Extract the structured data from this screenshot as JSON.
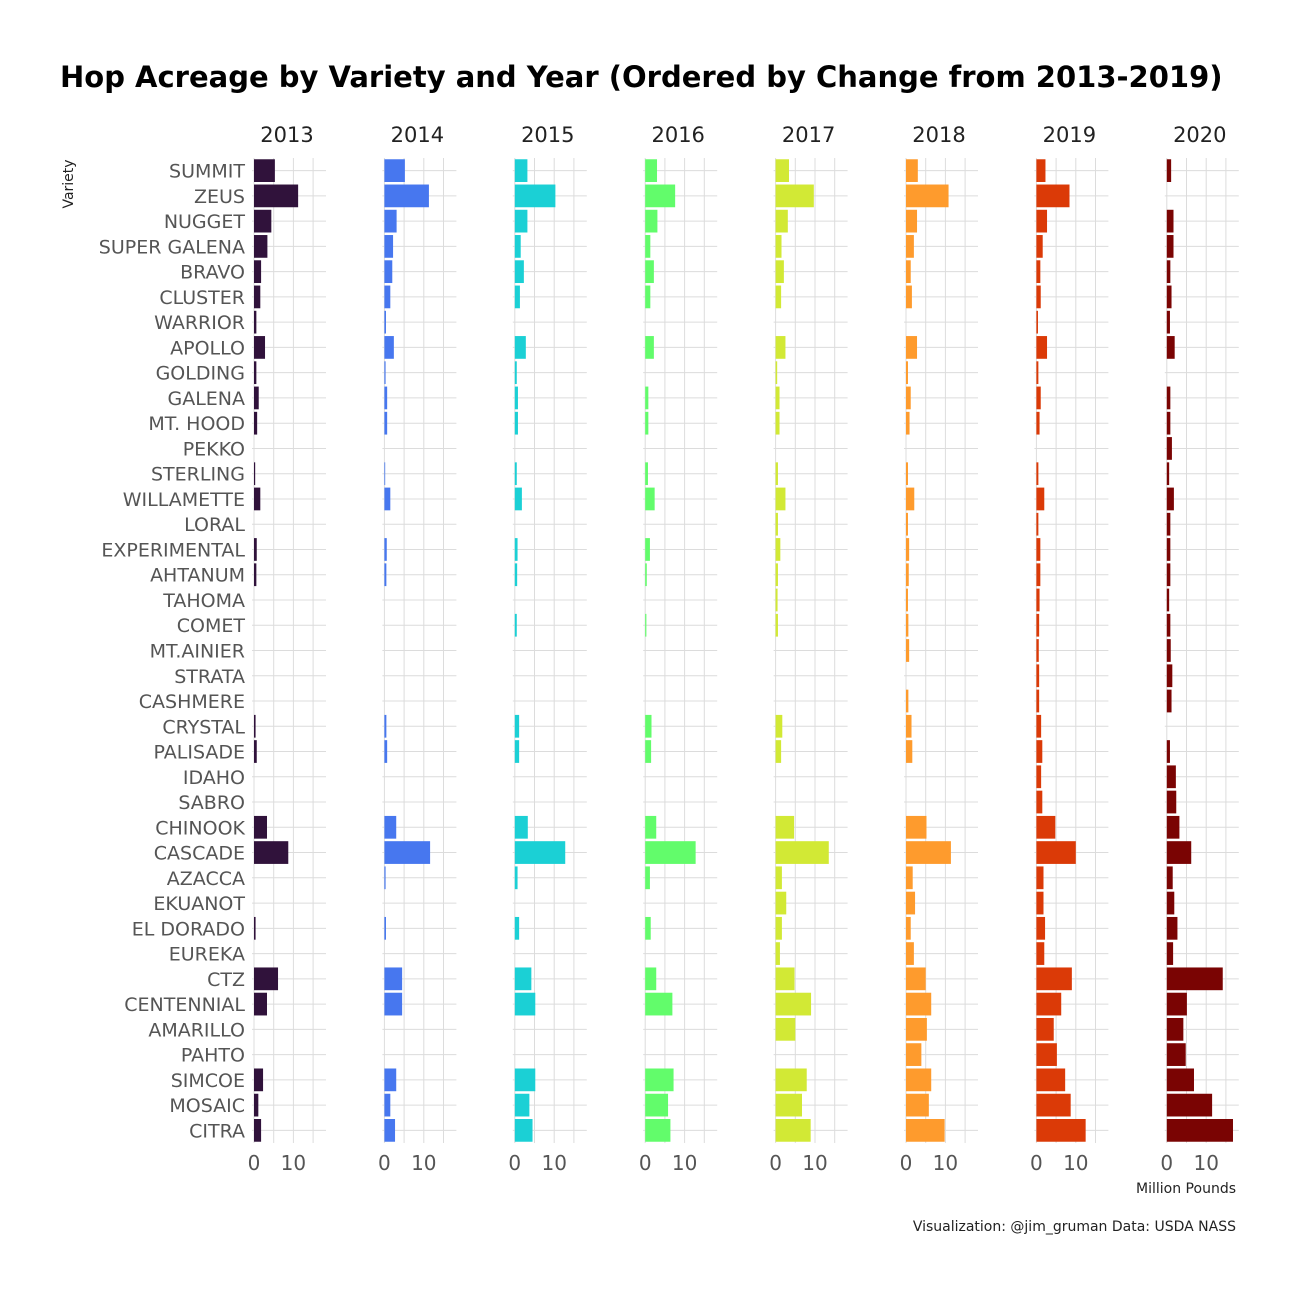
{
  "chart_data": {
    "type": "bar",
    "title": "Hop Acreage by Variety and Year (Ordered by Change from 2013-2019)",
    "ylabel": "Variety",
    "xlabel": "Million Pounds",
    "caption": "Visualization: @jim_gruman Data: USDA NASS",
    "orientation": "horizontal",
    "xlim": [
      0,
      18
    ],
    "xticks": [
      0,
      10
    ],
    "xtick_labels": [
      "0",
      "10"
    ],
    "grid": true,
    "categories": [
      "SUMMIT",
      "ZEUS",
      "NUGGET",
      "SUPER GALENA",
      "BRAVO",
      "CLUSTER",
      "WARRIOR",
      "APOLLO",
      "GOLDING",
      "GALENA",
      "MT. HOOD",
      "PEKKO",
      "STERLING",
      "WILLAMETTE",
      "LORAL",
      "EXPERIMENTAL",
      "AHTANUM",
      "TAHOMA",
      "COMET",
      "MT.AINIER",
      "STRATA",
      "CASHMERE",
      "CRYSTAL",
      "PALISADE",
      "IDAHO",
      "SABRO",
      "CHINOOK",
      "CASCADE",
      "AZACCA",
      "EKUANOT",
      "EL DORADO",
      "EUREKA",
      "CTZ",
      "CENTENNIAL",
      "AMARILLO",
      "PAHTO",
      "SIMCOE",
      "MOSAIC",
      "CITRA"
    ],
    "series": [
      {
        "name": "2013",
        "color": "#30123b",
        "values": [
          5.3,
          11.2,
          4.4,
          3.4,
          1.8,
          1.6,
          0.6,
          2.8,
          0.6,
          1.2,
          0.8,
          0,
          0.3,
          1.6,
          0,
          0.7,
          0.6,
          0,
          0,
          0,
          0,
          0,
          0.4,
          0.7,
          0,
          0,
          3.3,
          8.7,
          0,
          0,
          0.4,
          0,
          6.1,
          3.3,
          0,
          0,
          2.3,
          1.1,
          1.8
        ]
      },
      {
        "name": "2014",
        "color": "#4777ef",
        "values": [
          5.2,
          11.3,
          3.1,
          2.2,
          2.0,
          1.5,
          0.4,
          2.4,
          0.3,
          0.7,
          0.7,
          0,
          0.2,
          1.5,
          0,
          0.6,
          0.5,
          0,
          0,
          0,
          0,
          0,
          0.5,
          0.7,
          0,
          0,
          3.0,
          11.6,
          0.3,
          0,
          0.4,
          0,
          4.5,
          4.5,
          0,
          0,
          3.0,
          1.5,
          2.7
        ]
      },
      {
        "name": "2015",
        "color": "#1bd0d5",
        "values": [
          3.2,
          10.3,
          3.2,
          1.5,
          2.3,
          1.3,
          0,
          2.8,
          0.5,
          0.8,
          0.8,
          0,
          0.5,
          1.8,
          0,
          0.7,
          0.6,
          0,
          0.5,
          0,
          0,
          0,
          1.1,
          1.1,
          0,
          0,
          3.3,
          12.8,
          0.7,
          0,
          1.1,
          0,
          4.2,
          5.2,
          0,
          0,
          5.2,
          3.7,
          4.5
        ]
      },
      {
        "name": "2016",
        "color": "#62fc6b",
        "values": [
          3.0,
          7.6,
          3.1,
          1.3,
          2.2,
          1.3,
          0,
          2.2,
          0,
          0.8,
          0.8,
          0,
          0.7,
          2.4,
          0,
          1.2,
          0.4,
          0,
          0.3,
          0,
          0,
          0,
          1.6,
          1.5,
          0,
          0,
          2.8,
          12.8,
          1.2,
          0,
          1.4,
          0,
          2.8,
          6.9,
          0,
          0,
          7.2,
          5.8,
          6.4
        ]
      },
      {
        "name": "2017",
        "color": "#d2e935",
        "values": [
          3.4,
          9.7,
          3.1,
          1.5,
          2.1,
          1.4,
          0,
          2.5,
          0.4,
          1.0,
          1.0,
          0,
          0.6,
          2.5,
          0.6,
          1.2,
          0.6,
          0.5,
          0.6,
          0,
          0,
          0,
          1.7,
          1.4,
          0,
          0,
          4.7,
          13.5,
          1.6,
          2.7,
          1.6,
          1.1,
          4.8,
          9.0,
          5.0,
          0,
          7.9,
          6.7,
          8.9
        ]
      },
      {
        "name": "2018",
        "color": "#fe9b2d",
        "values": [
          3.0,
          10.8,
          2.8,
          2.0,
          1.2,
          1.5,
          0,
          2.8,
          0.5,
          1.2,
          0.9,
          0,
          0.5,
          2.1,
          0.5,
          0.8,
          0.7,
          0.5,
          0.6,
          0.8,
          0,
          0.6,
          1.4,
          1.6,
          0,
          0,
          5.2,
          11.4,
          1.7,
          2.3,
          1.2,
          2.0,
          5.0,
          6.4,
          5.3,
          3.9,
          6.4,
          5.8,
          9.8
        ]
      },
      {
        "name": "2019",
        "color": "#db3a07",
        "values": [
          2.3,
          8.4,
          2.7,
          1.6,
          1.0,
          1.1,
          0.4,
          2.7,
          0.5,
          1.1,
          0.8,
          0,
          0.5,
          2.0,
          0.5,
          1.0,
          1.0,
          0.8,
          0.7,
          0.6,
          0.7,
          0.7,
          1.2,
          1.5,
          1.2,
          1.5,
          4.8,
          10.0,
          1.8,
          1.8,
          2.2,
          2.0,
          9.0,
          6.3,
          4.4,
          5.2,
          7.3,
          8.7,
          12.5
        ]
      },
      {
        "name": "2020",
        "color": "#7a0403",
        "values": [
          1.1,
          0,
          1.7,
          1.7,
          0.9,
          1.2,
          0.8,
          2.0,
          0,
          0.9,
          0.9,
          1.3,
          0.6,
          1.8,
          0.9,
          0.9,
          0.9,
          0.6,
          0.9,
          1.0,
          1.4,
          1.2,
          0,
          0.8,
          2.3,
          2.4,
          3.2,
          6.2,
          1.5,
          1.9,
          2.7,
          1.6,
          14.2,
          5.1,
          4.2,
          4.8,
          6.9,
          11.5,
          16.8
        ]
      }
    ]
  }
}
